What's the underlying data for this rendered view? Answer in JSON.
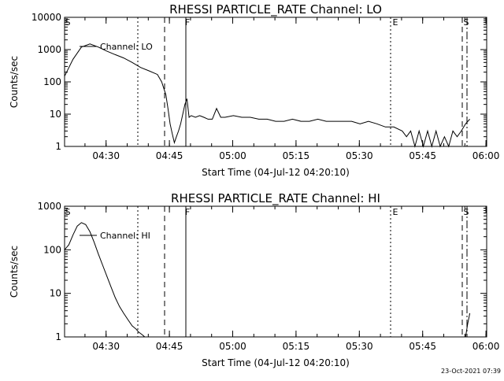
{
  "timestamp": "23-Oct-2021 07:39",
  "chart_data": [
    {
      "type": "line",
      "title": "RHESSI PARTICLE_RATE Channel: LO",
      "xlabel": "Start Time (04-Jul-12 04:20:10)",
      "ylabel": "Counts/sec",
      "x_tick_labels": [
        "04:30",
        "04:45",
        "05:00",
        "05:15",
        "05:30",
        "05:45",
        "06:00"
      ],
      "y_tick_labels": [
        "1",
        "10",
        "100",
        "1000",
        "10000"
      ],
      "x_range_minutes_after_start": [
        0,
        100
      ],
      "ylim": [
        1,
        10000
      ],
      "y_scale": "log",
      "legend": [
        "Channel: LO"
      ],
      "legend_position": "top-left",
      "flag_markers": [
        "S",
        "F",
        "E",
        "S"
      ],
      "series": [
        {
          "name": "Channel: LO",
          "x_minutes_after_start": [
            0,
            2,
            4,
            6,
            8,
            10,
            12,
            14,
            16,
            18,
            20,
            22,
            23,
            24,
            24.5,
            25,
            25.5,
            26,
            26.5,
            27,
            27.5,
            28,
            28.5,
            29,
            29.5,
            30,
            31,
            32,
            33,
            34,
            35,
            36,
            37,
            38,
            40,
            42,
            44,
            46,
            48,
            50,
            52,
            54,
            56,
            58,
            60,
            62,
            64,
            66,
            68,
            70,
            72,
            74,
            76,
            78,
            80,
            81,
            82,
            83,
            84,
            85,
            86,
            87,
            88,
            89,
            90,
            91,
            92,
            93,
            94,
            95,
            96
          ],
          "values": [
            150,
            500,
            1200,
            1500,
            1200,
            900,
            700,
            550,
            400,
            280,
            220,
            170,
            100,
            40,
            15,
            5,
            2.5,
            1.3,
            2,
            3,
            5,
            10,
            20,
            30,
            8,
            9,
            8,
            9,
            8,
            7,
            7,
            15,
            8,
            8,
            9,
            8,
            8,
            7,
            7,
            6,
            6,
            7,
            6,
            6,
            7,
            6,
            6,
            6,
            6,
            5,
            6,
            5,
            4,
            4,
            3,
            2,
            3,
            1,
            3,
            1,
            3,
            1,
            3,
            1,
            2,
            1,
            3,
            2,
            3,
            5,
            7
          ]
        }
      ]
    },
    {
      "type": "line",
      "title": "RHESSI PARTICLE_RATE Channel: HI",
      "xlabel": "Start Time (04-Jul-12 04:20:10)",
      "ylabel": "Counts/sec",
      "x_tick_labels": [
        "04:30",
        "04:45",
        "05:00",
        "05:15",
        "05:30",
        "05:45",
        "06:00"
      ],
      "y_tick_labels": [
        "1",
        "10",
        "100",
        "1000"
      ],
      "x_range_minutes_after_start": [
        0,
        100
      ],
      "ylim": [
        1,
        1000
      ],
      "y_scale": "log",
      "legend": [
        "Channel: HI"
      ],
      "legend_position": "top-left",
      "flag_markers": [
        "S",
        "F",
        "E",
        "S"
      ],
      "series": [
        {
          "name": "Channel: HI",
          "x_minutes_after_start": [
            0,
            1,
            2,
            3,
            4,
            5,
            6,
            7,
            8,
            9,
            10,
            11,
            12,
            13,
            14,
            15,
            16,
            17,
            17.5,
            18,
            18.5,
            19
          ],
          "values": [
            100,
            130,
            220,
            350,
            420,
            380,
            260,
            150,
            80,
            45,
            25,
            14,
            8,
            5,
            3.5,
            2.5,
            1.8,
            1.5,
            1.3,
            1.2,
            1.1,
            1.0
          ]
        },
        {
          "name": "Channel: HI",
          "x_minutes_after_start": [
            95,
            95.5,
            96
          ],
          "values": [
            1.0,
            2.0,
            3.5
          ]
        }
      ]
    }
  ]
}
